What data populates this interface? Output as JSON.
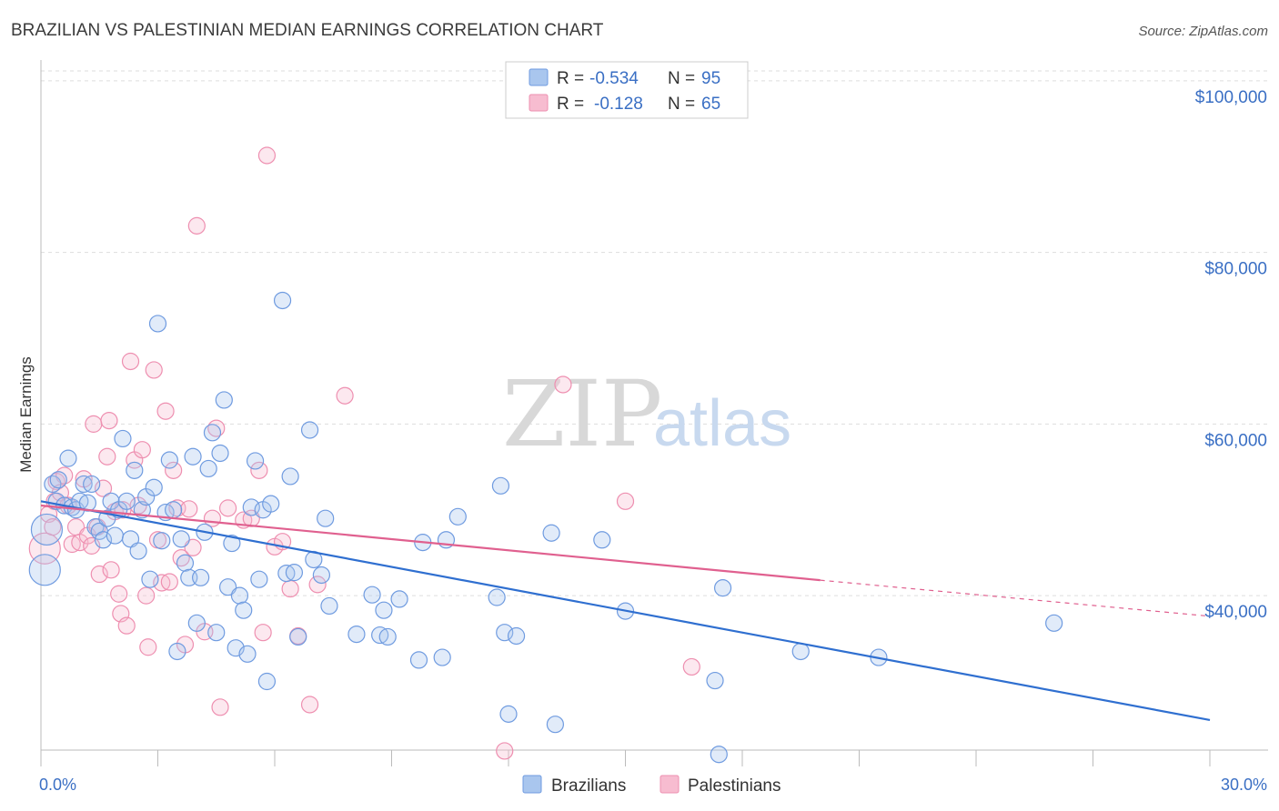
{
  "title": "BRAZILIAN VS PALESTINIAN MEDIAN EARNINGS CORRELATION CHART",
  "source": "Source: ZipAtlas.com",
  "watermark": {
    "zip": "ZIP",
    "atlas": "atlas"
  },
  "legend": {
    "r_label": "R =",
    "n_label": "N =",
    "items": [
      {
        "r": "-0.534",
        "n": "95",
        "color": "#a9c6ee",
        "stroke": "#6f9be0"
      },
      {
        "r": "-0.128",
        "n": "65",
        "color": "#f7bcd0",
        "stroke": "#ee8fb0"
      }
    ]
  },
  "bottom_legend": [
    "Brazilians",
    "Palestinians"
  ],
  "chart_data": {
    "type": "scatter",
    "title": "BRAZILIAN VS PALESTINIAN MEDIAN EARNINGS CORRELATION CHART",
    "xlabel": "",
    "ylabel": "Median Earnings",
    "xlim": [
      0,
      30
    ],
    "ylim": [
      22000,
      102000
    ],
    "x_tick_labels": [
      "0.0%",
      "30.0%"
    ],
    "y_ticks": [
      40000,
      60000,
      80000,
      100000
    ],
    "y_tick_labels": [
      "$40,000",
      "$60,000",
      "$80,000",
      "$100,000"
    ],
    "grid": true,
    "colors": {
      "brazilians": "#6f9be0",
      "palestinians": "#ee8fb0",
      "brazilians_line": "#2f6fd0",
      "palestinians_line": "#e0608f"
    },
    "series": [
      {
        "name": "Brazilians",
        "trend": {
          "x0": 0,
          "y0": 51000,
          "x1": 30,
          "y1": 25500
        },
        "points": [
          [
            0.1,
            43000
          ],
          [
            0.15,
            47700
          ],
          [
            0.3,
            53000
          ],
          [
            0.4,
            51000
          ],
          [
            0.45,
            53500
          ],
          [
            0.6,
            50500
          ],
          [
            0.7,
            56000
          ],
          [
            0.8,
            50300
          ],
          [
            0.9,
            50000
          ],
          [
            1.0,
            51000
          ],
          [
            1.1,
            53000
          ],
          [
            1.2,
            50800
          ],
          [
            1.3,
            53000
          ],
          [
            1.4,
            48000
          ],
          [
            1.5,
            47500
          ],
          [
            1.6,
            46500
          ],
          [
            1.7,
            49000
          ],
          [
            1.8,
            51000
          ],
          [
            1.9,
            47000
          ],
          [
            2.0,
            50000
          ],
          [
            2.1,
            58300
          ],
          [
            2.2,
            51000
          ],
          [
            2.3,
            46600
          ],
          [
            2.4,
            54600
          ],
          [
            2.5,
            45200
          ],
          [
            2.6,
            50000
          ],
          [
            2.7,
            51500
          ],
          [
            2.8,
            41900
          ],
          [
            2.9,
            52600
          ],
          [
            3.0,
            71700
          ],
          [
            3.1,
            46400
          ],
          [
            3.2,
            49700
          ],
          [
            3.3,
            55800
          ],
          [
            3.4,
            50000
          ],
          [
            3.5,
            33500
          ],
          [
            3.6,
            46600
          ],
          [
            3.7,
            43800
          ],
          [
            3.8,
            42100
          ],
          [
            3.9,
            56200
          ],
          [
            4.0,
            36800
          ],
          [
            4.1,
            42100
          ],
          [
            4.2,
            47400
          ],
          [
            4.3,
            54800
          ],
          [
            4.4,
            59000
          ],
          [
            4.5,
            35700
          ],
          [
            4.6,
            56600
          ],
          [
            4.7,
            62800
          ],
          [
            4.8,
            41000
          ],
          [
            4.9,
            46100
          ],
          [
            5.0,
            33900
          ],
          [
            5.1,
            40000
          ],
          [
            5.2,
            38300
          ],
          [
            5.3,
            33200
          ],
          [
            5.4,
            50300
          ],
          [
            5.5,
            55700
          ],
          [
            5.6,
            41900
          ],
          [
            5.7,
            50000
          ],
          [
            5.8,
            30000
          ],
          [
            5.9,
            50700
          ],
          [
            6.2,
            74400
          ],
          [
            6.3,
            42600
          ],
          [
            6.4,
            53900
          ],
          [
            6.5,
            42700
          ],
          [
            6.6,
            35200
          ],
          [
            6.9,
            59300
          ],
          [
            7.0,
            44200
          ],
          [
            7.2,
            42400
          ],
          [
            7.3,
            49000
          ],
          [
            7.4,
            38800
          ],
          [
            8.1,
            35500
          ],
          [
            8.5,
            40100
          ],
          [
            8.7,
            35400
          ],
          [
            8.8,
            38300
          ],
          [
            8.9,
            35200
          ],
          [
            9.2,
            39600
          ],
          [
            9.7,
            32500
          ],
          [
            9.8,
            46200
          ],
          [
            10.3,
            32800
          ],
          [
            10.4,
            46500
          ],
          [
            10.7,
            49200
          ],
          [
            11.7,
            39800
          ],
          [
            11.8,
            52800
          ],
          [
            11.9,
            35700
          ],
          [
            12.0,
            26200
          ],
          [
            12.2,
            35300
          ],
          [
            13.1,
            47300
          ],
          [
            13.2,
            25000
          ],
          [
            14.4,
            46500
          ],
          [
            15.0,
            38200
          ],
          [
            17.3,
            30100
          ],
          [
            17.4,
            21500
          ],
          [
            17.5,
            40900
          ],
          [
            19.5,
            33500
          ],
          [
            21.5,
            32800
          ],
          [
            26.0,
            36800
          ]
        ]
      },
      {
        "name": "Palestinians",
        "trend": {
          "x0": 0,
          "y0": 50500,
          "x1": 20,
          "y1": 41800,
          "x_dash_end": 30,
          "y_dash_end": 37600
        },
        "points": [
          [
            0.1,
            45500
          ],
          [
            0.2,
            49500
          ],
          [
            0.3,
            48000
          ],
          [
            0.35,
            51000
          ],
          [
            0.4,
            53300
          ],
          [
            0.5,
            52000
          ],
          [
            0.6,
            54000
          ],
          [
            0.7,
            50500
          ],
          [
            0.8,
            46000
          ],
          [
            0.9,
            48000
          ],
          [
            1.0,
            46200
          ],
          [
            1.1,
            53600
          ],
          [
            1.2,
            47000
          ],
          [
            1.3,
            45800
          ],
          [
            1.35,
            60000
          ],
          [
            1.45,
            48000
          ],
          [
            1.5,
            42500
          ],
          [
            1.6,
            52500
          ],
          [
            1.7,
            56200
          ],
          [
            1.75,
            60400
          ],
          [
            1.8,
            43000
          ],
          [
            1.9,
            49800
          ],
          [
            2.0,
            40200
          ],
          [
            2.05,
            37900
          ],
          [
            2.1,
            50000
          ],
          [
            2.2,
            36500
          ],
          [
            2.3,
            67300
          ],
          [
            2.4,
            55800
          ],
          [
            2.5,
            50500
          ],
          [
            2.6,
            57000
          ],
          [
            2.7,
            40000
          ],
          [
            2.75,
            34000
          ],
          [
            2.9,
            66300
          ],
          [
            3.0,
            46500
          ],
          [
            3.1,
            41500
          ],
          [
            3.2,
            61500
          ],
          [
            3.3,
            41600
          ],
          [
            3.4,
            54600
          ],
          [
            3.5,
            50200
          ],
          [
            3.6,
            44400
          ],
          [
            3.7,
            34300
          ],
          [
            3.8,
            50100
          ],
          [
            3.9,
            45600
          ],
          [
            4.0,
            83100
          ],
          [
            4.2,
            35800
          ],
          [
            4.4,
            49000
          ],
          [
            4.5,
            59500
          ],
          [
            4.6,
            27000
          ],
          [
            4.8,
            50200
          ],
          [
            5.2,
            48800
          ],
          [
            5.4,
            49000
          ],
          [
            5.6,
            54600
          ],
          [
            5.7,
            35700
          ],
          [
            5.8,
            91300
          ],
          [
            6.0,
            45700
          ],
          [
            6.2,
            46300
          ],
          [
            6.4,
            40800
          ],
          [
            6.6,
            35300
          ],
          [
            6.9,
            27300
          ],
          [
            7.1,
            41300
          ],
          [
            7.8,
            63300
          ],
          [
            11.9,
            21900
          ],
          [
            13.4,
            64600
          ],
          [
            15.0,
            51000
          ],
          [
            16.7,
            31700
          ]
        ]
      }
    ]
  }
}
